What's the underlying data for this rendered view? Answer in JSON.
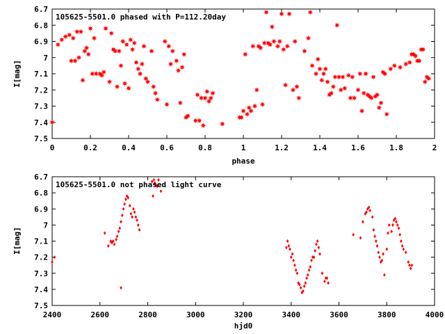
{
  "chart_data": [
    {
      "type": "scatter",
      "title": "105625-5501.0 phased with P=112.20day",
      "xlabel": "phase",
      "ylabel": "I[mag]",
      "xlim": [
        0,
        2
      ],
      "ylim": [
        6.7,
        7.5
      ],
      "y_inverted": true,
      "x_ticks": [
        "0",
        "0.2",
        "0.4",
        "0.6",
        "0.8",
        "1",
        "1.2",
        "1.4",
        "1.6",
        "1.8",
        "2"
      ],
      "y_ticks": [
        "6.7",
        "6.8",
        "6.9",
        "7",
        "7.1",
        "7.2",
        "7.3",
        "7.4",
        "7.5"
      ],
      "marker_color": "#ff0000",
      "marker": "filled-star",
      "points": [
        [
          0.0,
          7.4
        ],
        [
          0.03,
          6.92
        ],
        [
          0.05,
          6.89
        ],
        [
          0.07,
          6.87
        ],
        [
          0.09,
          6.86
        ],
        [
          0.1,
          7.02
        ],
        [
          0.11,
          6.88
        ],
        [
          0.12,
          7.02
        ],
        [
          0.13,
          6.84
        ],
        [
          0.14,
          7.0
        ],
        [
          0.15,
          6.84
        ],
        [
          0.16,
          7.14
        ],
        [
          0.17,
          6.96
        ],
        [
          0.18,
          6.94
        ],
        [
          0.19,
          6.98
        ],
        [
          0.2,
          6.82
        ],
        [
          0.21,
          7.1
        ],
        [
          0.22,
          6.88
        ],
        [
          0.23,
          7.1
        ],
        [
          0.25,
          7.1
        ],
        [
          0.26,
          7.11
        ],
        [
          0.27,
          7.09
        ],
        [
          0.28,
          6.82
        ],
        [
          0.3,
          7.15
        ],
        [
          0.31,
          6.85
        ],
        [
          0.32,
          6.95
        ],
        [
          0.33,
          6.96
        ],
        [
          0.34,
          7.18
        ],
        [
          0.35,
          6.96
        ],
        [
          0.36,
          7.05
        ],
        [
          0.37,
          6.9
        ],
        [
          0.38,
          7.16
        ],
        [
          0.39,
          6.92
        ],
        [
          0.4,
          7.19
        ],
        [
          0.41,
          6.89
        ],
        [
          0.42,
          6.95
        ],
        [
          0.43,
          6.91
        ],
        [
          0.44,
          7.03
        ],
        [
          0.45,
          7.07
        ],
        [
          0.46,
          7.1
        ],
        [
          0.47,
          7.04
        ],
        [
          0.48,
          6.93
        ],
        [
          0.49,
          7.13
        ],
        [
          0.5,
          7.15
        ],
        [
          0.52,
          6.96
        ],
        [
          0.53,
          7.18
        ],
        [
          0.54,
          7.22
        ],
        [
          0.55,
          7.26
        ],
        [
          0.59,
          6.9
        ],
        [
          0.6,
          7.29
        ],
        [
          0.61,
          6.93
        ],
        [
          0.62,
          7.04
        ],
        [
          0.63,
          6.96
        ],
        [
          0.65,
          7.02
        ],
        [
          0.66,
          7.08
        ],
        [
          0.67,
          7.28
        ],
        [
          0.68,
          7.06
        ],
        [
          0.69,
          6.98
        ],
        [
          0.7,
          7.37
        ],
        [
          0.71,
          7.36
        ],
        [
          0.75,
          7.39
        ],
        [
          0.76,
          7.23
        ],
        [
          0.77,
          7.39
        ],
        [
          0.78,
          7.25
        ],
        [
          0.79,
          7.42
        ],
        [
          0.8,
          7.25
        ],
        [
          0.81,
          7.21
        ],
        [
          0.82,
          7.27
        ],
        [
          0.83,
          7.25
        ],
        [
          0.84,
          7.22
        ],
        [
          0.89,
          7.41
        ],
        [
          0.98,
          7.37
        ],
        [
          0.99,
          7.37
        ],
        [
          1.0,
          7.33
        ],
        [
          1.01,
          6.98
        ],
        [
          1.02,
          7.35
        ],
        [
          1.03,
          7.31
        ],
        [
          1.04,
          7.33
        ],
        [
          1.05,
          6.93
        ],
        [
          1.06,
          7.3
        ],
        [
          1.07,
          7.2
        ],
        [
          1.08,
          6.93
        ],
        [
          1.09,
          6.94
        ],
        [
          1.1,
          7.29
        ],
        [
          1.11,
          6.91
        ],
        [
          1.12,
          6.72
        ],
        [
          1.13,
          6.91
        ],
        [
          1.14,
          6.92
        ],
        [
          1.15,
          6.81
        ],
        [
          1.16,
          6.9
        ],
        [
          1.18,
          6.93
        ],
        [
          1.19,
          6.9
        ],
        [
          1.2,
          6.73
        ],
        [
          1.21,
          6.95
        ],
        [
          1.22,
          7.17
        ],
        [
          1.23,
          6.93
        ],
        [
          1.24,
          6.73
        ],
        [
          1.26,
          7.2
        ],
        [
          1.27,
          6.9
        ],
        [
          1.28,
          7.18
        ],
        [
          1.29,
          7.25
        ],
        [
          1.32,
          6.96
        ],
        [
          1.34,
          6.88
        ],
        [
          1.35,
          6.72
        ],
        [
          1.36,
          7.05
        ],
        [
          1.38,
          7.1
        ],
        [
          1.39,
          7.01
        ],
        [
          1.4,
          7.07
        ],
        [
          1.41,
          7.14
        ],
        [
          1.42,
          7.1
        ],
        [
          1.43,
          7.07
        ],
        [
          1.44,
          7.15
        ],
        [
          1.45,
          7.23
        ],
        [
          1.46,
          7.22
        ],
        [
          1.47,
          7.18
        ],
        [
          1.48,
          7.12
        ],
        [
          1.49,
          6.8
        ],
        [
          1.5,
          7.12
        ],
        [
          1.51,
          7.2
        ],
        [
          1.52,
          7.12
        ],
        [
          1.53,
          7.19
        ],
        [
          1.55,
          7.11
        ],
        [
          1.56,
          7.25
        ],
        [
          1.57,
          7.12
        ],
        [
          1.58,
          7.25
        ],
        [
          1.6,
          7.2
        ],
        [
          1.61,
          7.1
        ],
        [
          1.62,
          7.33
        ],
        [
          1.63,
          7.22
        ],
        [
          1.64,
          7.1
        ],
        [
          1.65,
          7.23
        ],
        [
          1.66,
          7.24
        ],
        [
          1.67,
          7.25
        ],
        [
          1.68,
          7.12
        ],
        [
          1.69,
          7.24
        ],
        [
          1.7,
          7.23
        ],
        [
          1.71,
          7.31
        ],
        [
          1.72,
          7.28
        ],
        [
          1.73,
          7.09
        ],
        [
          1.74,
          7.1
        ],
        [
          1.75,
          7.35
        ],
        [
          1.77,
          7.07
        ],
        [
          1.79,
          7.05
        ],
        [
          1.82,
          7.06
        ],
        [
          1.85,
          7.04
        ],
        [
          1.87,
          7.03
        ],
        [
          1.88,
          6.98
        ],
        [
          1.89,
          6.98
        ],
        [
          1.9,
          6.99
        ],
        [
          1.91,
          7.02
        ],
        [
          1.92,
          7.02
        ],
        [
          1.93,
          6.95
        ],
        [
          1.94,
          6.95
        ],
        [
          1.95,
          7.15
        ],
        [
          1.96,
          7.12
        ],
        [
          1.97,
          7.13
        ]
      ]
    },
    {
      "type": "scatter",
      "title": "105625-5501.0 not phased light curve",
      "xlabel": "hjd0",
      "ylabel": "I[mag]",
      "xlim": [
        2400,
        4000
      ],
      "ylim": [
        6.7,
        7.5
      ],
      "y_inverted": true,
      "x_ticks": [
        "2400",
        "2600",
        "2800",
        "3000",
        "3200",
        "3400",
        "3600",
        "3800",
        "4000"
      ],
      "y_ticks": [
        "6.7",
        "6.8",
        "6.9",
        "7",
        "7.1",
        "7.2",
        "7.3",
        "7.4",
        "7.5"
      ],
      "marker_color": "#ff0000",
      "marker": "filled-diamond",
      "points": [
        [
          2400,
          7.23
        ],
        [
          2410,
          7.2
        ],
        [
          2620,
          7.05
        ],
        [
          2635,
          7.13
        ],
        [
          2645,
          7.1
        ],
        [
          2650,
          7.11
        ],
        [
          2655,
          7.1
        ],
        [
          2660,
          7.12
        ],
        [
          2668,
          7.09
        ],
        [
          2672,
          7.07
        ],
        [
          2678,
          7.04
        ],
        [
          2683,
          7.02
        ],
        [
          2688,
          6.98
        ],
        [
          2693,
          6.94
        ],
        [
          2698,
          6.9
        ],
        [
          2703,
          6.87
        ],
        [
          2708,
          6.84
        ],
        [
          2713,
          6.82
        ],
        [
          2718,
          6.83
        ],
        [
          2725,
          6.88
        ],
        [
          2730,
          6.93
        ],
        [
          2735,
          6.95
        ],
        [
          2740,
          6.9
        ],
        [
          2745,
          6.92
        ],
        [
          2750,
          6.95
        ],
        [
          2755,
          6.97
        ],
        [
          2760,
          7.0
        ],
        [
          2765,
          7.03
        ],
        [
          2688,
          7.39
        ],
        [
          2818,
          6.73
        ],
        [
          2822,
          6.82
        ],
        [
          2826,
          6.72
        ],
        [
          2830,
          6.74
        ],
        [
          2834,
          6.75
        ],
        [
          2840,
          6.76
        ],
        [
          2845,
          6.72
        ],
        [
          2855,
          6.79
        ],
        [
          3380,
          7.14
        ],
        [
          3385,
          7.1
        ],
        [
          3390,
          7.13
        ],
        [
          3395,
          7.15
        ],
        [
          3400,
          7.2
        ],
        [
          3405,
          7.18
        ],
        [
          3410,
          7.22
        ],
        [
          3415,
          7.25
        ],
        [
          3420,
          7.28
        ],
        [
          3425,
          7.3
        ],
        [
          3430,
          7.36
        ],
        [
          3435,
          7.37
        ],
        [
          3440,
          7.39
        ],
        [
          3445,
          7.42
        ],
        [
          3450,
          7.41
        ],
        [
          3455,
          7.38
        ],
        [
          3460,
          7.36
        ],
        [
          3465,
          7.33
        ],
        [
          3470,
          7.31
        ],
        [
          3475,
          7.28
        ],
        [
          3480,
          7.26
        ],
        [
          3485,
          7.22
        ],
        [
          3490,
          7.2
        ],
        [
          3495,
          7.2
        ],
        [
          3500,
          7.16
        ],
        [
          3505,
          7.12
        ],
        [
          3510,
          7.1
        ],
        [
          3515,
          7.14
        ],
        [
          3520,
          7.18
        ],
        [
          3530,
          7.3
        ],
        [
          3540,
          7.35
        ],
        [
          3545,
          7.33
        ],
        [
          3550,
          7.33
        ],
        [
          3555,
          7.36
        ],
        [
          3660,
          7.06
        ],
        [
          3690,
          7.08
        ],
        [
          3700,
          6.98
        ],
        [
          3710,
          6.93
        ],
        [
          3715,
          6.92
        ],
        [
          3720,
          6.9
        ],
        [
          3725,
          6.89
        ],
        [
          3730,
          6.91
        ],
        [
          3740,
          6.95
        ],
        [
          3745,
          7.03
        ],
        [
          3750,
          7.07
        ],
        [
          3755,
          7.1
        ],
        [
          3760,
          7.13
        ],
        [
          3765,
          7.17
        ],
        [
          3770,
          7.2
        ],
        [
          3775,
          7.23
        ],
        [
          3780,
          7.22
        ],
        [
          3785,
          7.18
        ],
        [
          3790,
          7.31
        ],
        [
          3800,
          7.15
        ],
        [
          3805,
          7.05
        ],
        [
          3810,
          7.0
        ],
        [
          3820,
          7.04
        ],
        [
          3825,
          7.0
        ],
        [
          3830,
          6.97
        ],
        [
          3835,
          6.96
        ],
        [
          3840,
          6.98
        ],
        [
          3845,
          7.0
        ],
        [
          3850,
          7.02
        ],
        [
          3855,
          7.06
        ],
        [
          3860,
          7.1
        ],
        [
          3865,
          7.13
        ],
        [
          3870,
          7.15
        ],
        [
          3880,
          7.17
        ],
        [
          3890,
          7.23
        ],
        [
          3895,
          7.25
        ],
        [
          3900,
          7.27
        ],
        [
          3905,
          7.25
        ]
      ]
    }
  ]
}
